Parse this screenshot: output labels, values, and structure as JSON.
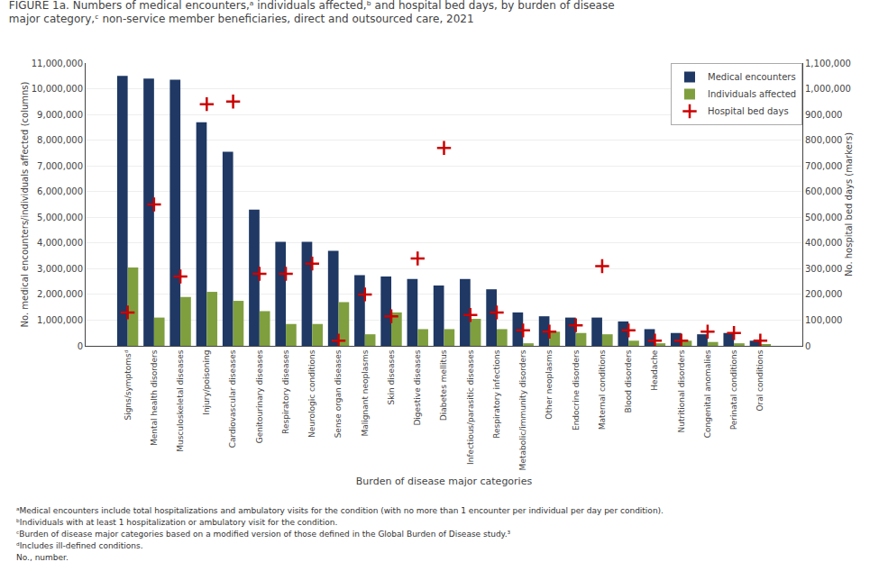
{
  "chart_data": {
    "type": "bar",
    "title": "FIGURE 1a. Numbers of medical encounters,ᵃ individuals affected,ᵇ and hospital bed days, by burden of disease major category,ᶜ non-service member beneficiaries, direct and outsourced care, 2021",
    "xlabel": "Burden of disease major categories",
    "ylabel": "No. medical encounters/individuals affected (columns)",
    "y2label": "No. hospital bed days (markers)",
    "annotations": [
      "ᵃMedical encounters include total hospitalizations and ambulatory visits for the condition (with no more than 1 encounter per individual per day per condition).",
      "ᵇIndividuals with at least 1 hospitalization or ambulatory visit for the condition.",
      "ᶜBurden of disease major categories based on a modified version of those defined in the Global Burden of Disease study.³",
      "ᵈIncludes ill-defined conditions.",
      "No., number."
    ],
    "categories": [
      "Signs/symptomsᵈ",
      "Mental health disorders",
      "Musculoskeletal diseases",
      "Injury/poisoning",
      "Cardiovascular diseases",
      "Genitourinary diseases",
      "Respiratory diseases",
      "Neurologic conditions",
      "Sense organ diseases",
      "Malignant neoplasms",
      "Skin diseases",
      "Digestive diseases",
      "Diabetes mellitus",
      "Infectious/parasitic diseases",
      "Respiratory infections",
      "Metabolic/immunity disorders",
      "Other neoplasms",
      "Endocrine disorders",
      "Maternal conditions",
      "Blood disorders",
      "Headache",
      "Nutritional disorders",
      "Congenital anomalies",
      "Perinatal conditions",
      "Oral conditions"
    ],
    "series": [
      {
        "name": "Medical encounters",
        "type": "bar",
        "color": "#1f3864",
        "values": [
          10500000,
          10400000,
          10350000,
          8700000,
          7550000,
          5300000,
          4050000,
          4050000,
          3700000,
          2750000,
          2700000,
          2600000,
          2350000,
          2600000,
          2200000,
          1300000,
          1150000,
          1100000,
          1100000,
          950000,
          650000,
          500000,
          450000,
          500000,
          200000
        ]
      },
      {
        "name": "Individuals affected",
        "type": "bar",
        "color": "#7f9f3f",
        "values": [
          3050000,
          1100000,
          1900000,
          2100000,
          1750000,
          1350000,
          850000,
          850000,
          1700000,
          450000,
          1300000,
          650000,
          650000,
          1050000,
          650000,
          100000,
          550000,
          500000,
          450000,
          200000,
          100000,
          200000,
          150000,
          100000,
          50000
        ]
      },
      {
        "name": "Hospital bed days",
        "type": "scatter",
        "axis": "y2",
        "marker": "cross",
        "color": "#cc0000",
        "values": [
          130000,
          550000,
          270000,
          940000,
          950000,
          280000,
          280000,
          320000,
          20000,
          200000,
          115000,
          340000,
          770000,
          120000,
          130000,
          60000,
          55000,
          80000,
          310000,
          60000,
          20000,
          20000,
          55000,
          50000,
          20000
        ]
      }
    ],
    "ylim": [
      0,
      11000000
    ],
    "yticks": [
      0,
      {
        "value": 1000000,
        "label": "1,000,000"
      },
      {
        "value": 2000000,
        "label": "2,000,000"
      },
      {
        "value": 3000000,
        "label": "3,000,000"
      },
      {
        "value": 4000000,
        "label": "4,000,000"
      },
      {
        "value": 5000000,
        "label": "5,000,000"
      },
      {
        "value": 6000000,
        "label": "6,000,000"
      },
      {
        "value": 7000000,
        "label": "7,000,000"
      },
      {
        "value": 8000000,
        "label": "8,000,000"
      },
      {
        "value": 9000000,
        "label": "9,000,000"
      },
      {
        "value": 10000000,
        "label": "10,000,000"
      },
      {
        "value": 11000000,
        "label": "11,000,000"
      }
    ],
    "y2lim": [
      0,
      1100000
    ],
    "y2ticks": [
      0,
      {
        "value": 100000,
        "label": "100,000"
      },
      {
        "value": 200000,
        "label": "200,000"
      },
      {
        "value": 300000,
        "label": "300,000"
      },
      {
        "value": 400000,
        "label": "400,000"
      },
      {
        "value": 500000,
        "label": "500,000"
      },
      {
        "value": 600000,
        "label": "600,000"
      },
      {
        "value": 700000,
        "label": "700,000"
      },
      {
        "value": 800000,
        "label": "800,000"
      },
      {
        "value": 900000,
        "label": "900,000"
      },
      {
        "value": 1000000,
        "label": "1,000,000"
      },
      {
        "value": 1100000,
        "label": "1,100,000"
      }
    ],
    "grid": true,
    "legend": "upper right"
  }
}
